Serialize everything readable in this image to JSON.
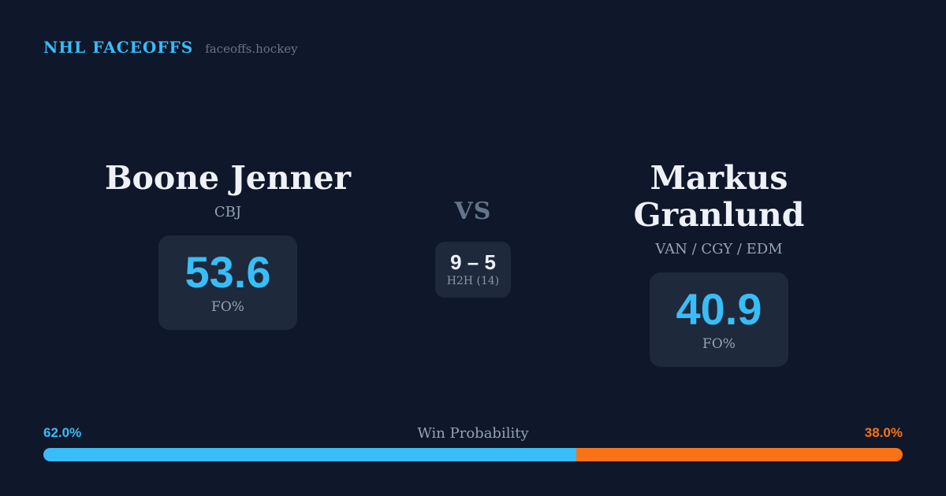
{
  "colors": {
    "background": "#0f172a",
    "card": "#1e293b",
    "accent_blue": "#38bdf8",
    "accent_orange": "#f97316",
    "text_primary": "#eef2f8",
    "text_muted": "#94a3b8",
    "text_dim": "#64748b"
  },
  "header": {
    "title": "NHL FACEOFFS",
    "domain": "faceoffs.hockey"
  },
  "players": {
    "left": {
      "name": "Boone Jenner",
      "teams": "CBJ",
      "fo_pct": "53.6",
      "fo_label": "FO%"
    },
    "right": {
      "name": "Markus Granlund",
      "teams": "VAN / CGY / EDM",
      "fo_pct": "40.9",
      "fo_label": "FO%"
    }
  },
  "matchup": {
    "vs_label": "VS",
    "h2h_score": "9 – 5",
    "h2h_label": "H2H (14)"
  },
  "win_probability": {
    "label": "Win Probability",
    "left_pct": "62.0%",
    "right_pct": "38.0%",
    "left_value": 62,
    "right_value": 38
  }
}
